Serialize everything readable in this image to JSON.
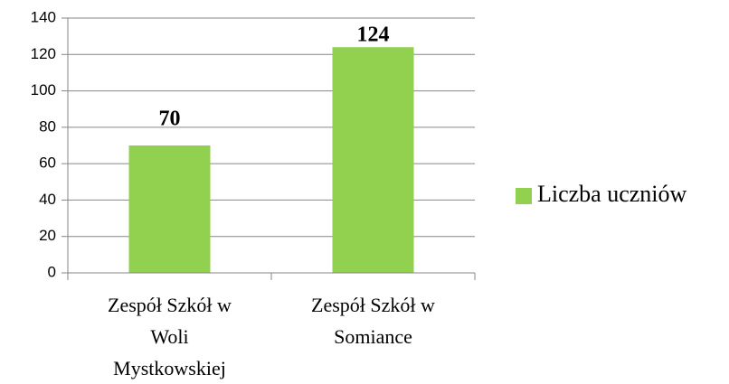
{
  "chart_data": {
    "type": "bar",
    "categories": [
      "Zespół Szkół w Woli Mystkowskiej",
      "Zespół Szkół w Somiance"
    ],
    "series": [
      {
        "name": "Liczba uczniów",
        "color": "#92d050",
        "values": [
          70,
          124
        ]
      }
    ],
    "ylim": [
      0,
      140
    ],
    "yticks": [
      0,
      20,
      40,
      60,
      80,
      100,
      120,
      140
    ],
    "grid": true,
    "legend": "right"
  }
}
